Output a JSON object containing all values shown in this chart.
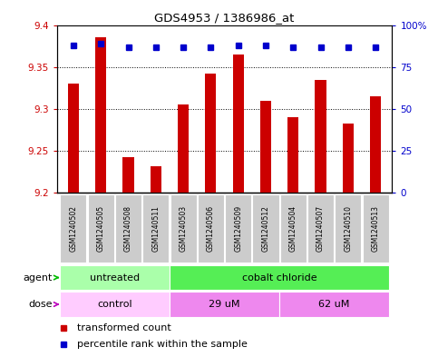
{
  "title": "GDS4953 / 1386986_at",
  "samples": [
    "GSM1240502",
    "GSM1240505",
    "GSM1240508",
    "GSM1240511",
    "GSM1240503",
    "GSM1240506",
    "GSM1240509",
    "GSM1240512",
    "GSM1240504",
    "GSM1240507",
    "GSM1240510",
    "GSM1240513"
  ],
  "bar_values": [
    9.33,
    9.385,
    9.242,
    9.232,
    9.305,
    9.342,
    9.365,
    9.31,
    9.29,
    9.335,
    9.282,
    9.315
  ],
  "percentile_values": [
    88,
    89,
    87,
    87,
    87,
    87,
    88,
    88,
    87,
    87,
    87,
    87
  ],
  "bar_color": "#cc0000",
  "percentile_color": "#0000cc",
  "ylim_left": [
    9.2,
    9.4
  ],
  "ylim_right": [
    0,
    100
  ],
  "yticks_left": [
    9.2,
    9.25,
    9.3,
    9.35,
    9.4
  ],
  "yticks_right": [
    0,
    25,
    50,
    75,
    100
  ],
  "ytick_labels_right": [
    "0",
    "25",
    "50",
    "75",
    "100%"
  ],
  "agent_labels": [
    {
      "label": "untreated",
      "start": 0,
      "end": 4,
      "color": "#aaffaa"
    },
    {
      "label": "cobalt chloride",
      "start": 4,
      "end": 12,
      "color": "#55ee55"
    }
  ],
  "dose_labels": [
    {
      "label": "control",
      "start": 0,
      "end": 4,
      "color": "#ffccff"
    },
    {
      "label": "29 uM",
      "start": 4,
      "end": 8,
      "color": "#ee88ee"
    },
    {
      "label": "62 uM",
      "start": 8,
      "end": 12,
      "color": "#ee88ee"
    }
  ],
  "legend_bar_label": "transformed count",
  "legend_pct_label": "percentile rank within the sample",
  "agent_arrow_color": "#00bb00",
  "dose_arrow_color": "#bb00bb",
  "sample_bg_color": "#cccccc",
  "bar_width": 0.4
}
